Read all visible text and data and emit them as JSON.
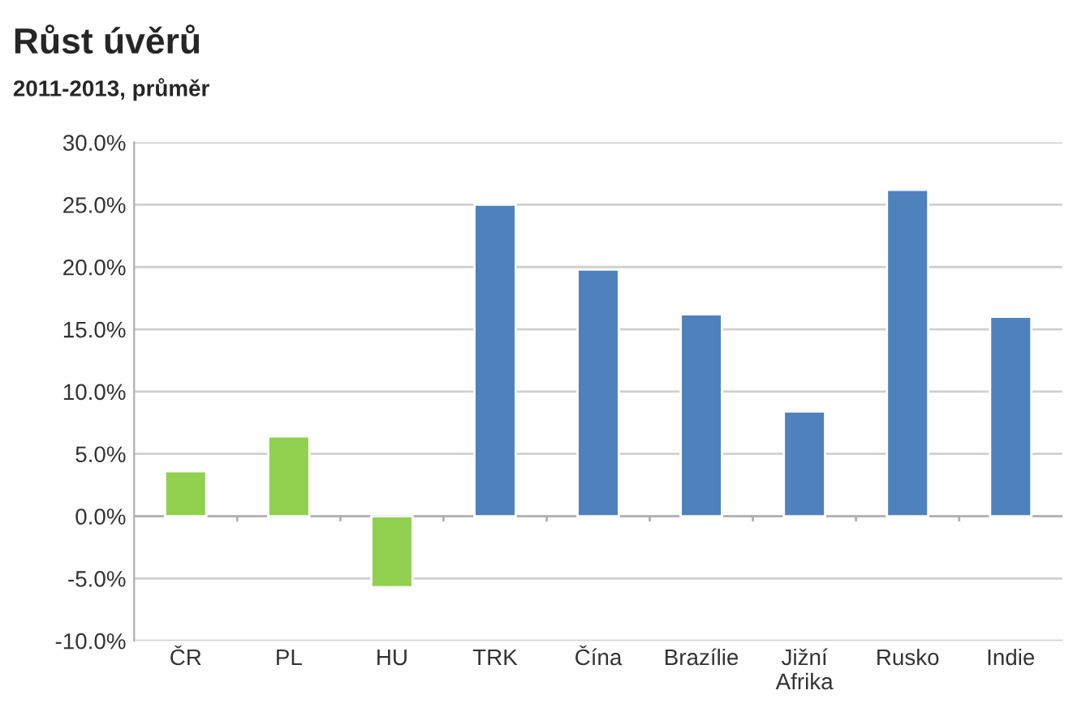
{
  "chart_data": {
    "type": "bar",
    "title": "Růst úvěrů",
    "subtitle": "2011-2013, průměr",
    "categories": [
      "ČR",
      "PL",
      "HU",
      "TRK",
      "Čína",
      "Brazílie",
      "Jižní\nAfrika",
      "Rusko",
      "Indie"
    ],
    "values": [
      3.6,
      6.4,
      -5.7,
      25.0,
      19.8,
      16.2,
      8.4,
      26.2,
      16.0
    ],
    "colors": [
      "#92d050",
      "#92d050",
      "#92d050",
      "#4f81bd",
      "#4f81bd",
      "#4f81bd",
      "#4f81bd",
      "#4f81bd",
      "#4f81bd"
    ],
    "ylim": [
      -10,
      30
    ],
    "yticks": [
      {
        "value": -10,
        "label": "-10.0%"
      },
      {
        "value": -5,
        "label": "-5.0%"
      },
      {
        "value": 0,
        "label": "0.0%"
      },
      {
        "value": 5,
        "label": "5.0%"
      },
      {
        "value": 10,
        "label": "10.0%"
      },
      {
        "value": 15,
        "label": "15.0%"
      },
      {
        "value": 20,
        "label": "20.0%"
      },
      {
        "value": 25,
        "label": "25.0%"
      },
      {
        "value": 30,
        "label": "30.0%"
      }
    ],
    "grid": "y",
    "legend": false
  }
}
